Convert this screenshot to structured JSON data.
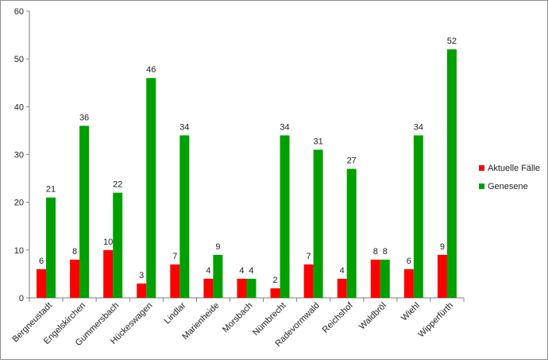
{
  "chart_data": {
    "type": "bar",
    "title": "",
    "xlabel": "",
    "ylabel": "",
    "ylim": [
      0,
      60
    ],
    "yticks": [
      0,
      10,
      20,
      30,
      40,
      50,
      60
    ],
    "grid": false,
    "legend_position": "right",
    "categories": [
      "Bergneustadt",
      "Engelskirchen",
      "Gummersbach",
      "Hückeswagen",
      "Lindlar",
      "Marienheide",
      "Morsbach",
      "Nümbrecht",
      "Radevormwald",
      "Reichshof",
      "Waldbröl",
      "Wiehl",
      "Wipperfürth"
    ],
    "series": [
      {
        "name": "Aktuelle Fälle",
        "color": "#ff0000",
        "values": [
          6,
          8,
          10,
          3,
          7,
          4,
          4,
          2,
          7,
          4,
          8,
          6,
          9
        ]
      },
      {
        "name": "Genesene",
        "color": "#00a000",
        "values": [
          21,
          36,
          22,
          46,
          34,
          9,
          4,
          34,
          31,
          27,
          8,
          34,
          52
        ]
      }
    ]
  }
}
